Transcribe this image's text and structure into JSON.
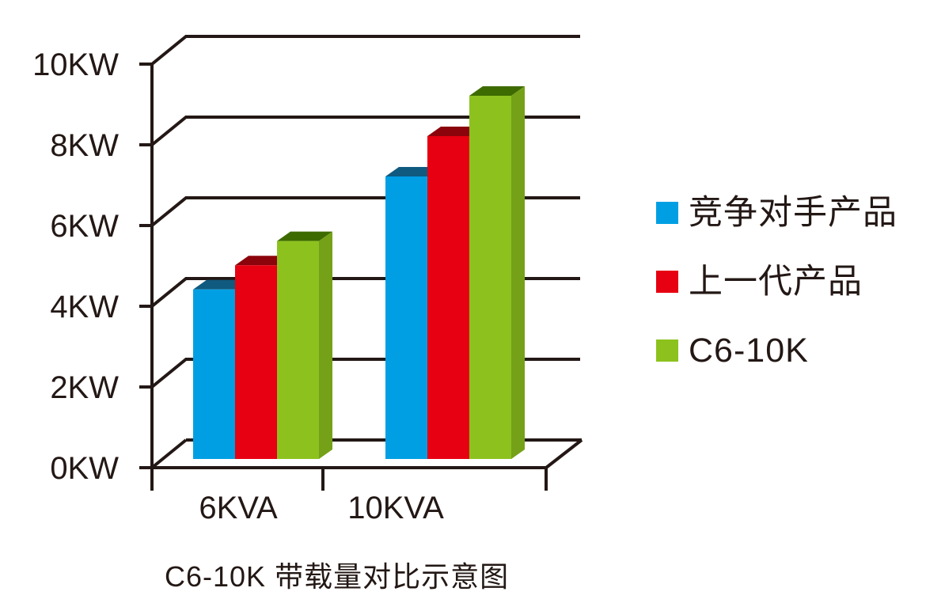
{
  "chart_data": {
    "type": "bar",
    "style": "3d-column",
    "title": "C6-10K 带载量对比示意图",
    "categories": [
      "6KVA",
      "10KVA"
    ],
    "series": [
      {
        "name": "竞争对手产品",
        "values": [
          4.2,
          7
        ],
        "color": "#009FE3",
        "top_color": "#10597F",
        "side_color": "#0B7FB5"
      },
      {
        "name": "上一代产品",
        "values": [
          4.8,
          8
        ],
        "color": "#E60012",
        "top_color": "#8B040B",
        "side_color": "#B5000E"
      },
      {
        "name": "C6-10K",
        "values": [
          5.4,
          9
        ],
        "color": "#8DC21E",
        "top_color": "#3E6B00",
        "side_color": "#74A117"
      }
    ],
    "y_axis": {
      "unit": "KW",
      "ticks": [
        {
          "value": 0,
          "label": "0KW"
        },
        {
          "value": 2,
          "label": "2KW"
        },
        {
          "value": 4,
          "label": "4KW"
        },
        {
          "value": 6,
          "label": "6KW"
        },
        {
          "value": 8,
          "label": "8KW"
        },
        {
          "value": 10,
          "label": "10KW"
        }
      ],
      "ylim": [
        0,
        10
      ]
    },
    "legend_position": "right",
    "grid": true,
    "axis_color": "#231815",
    "background": "#FFFFFF"
  }
}
